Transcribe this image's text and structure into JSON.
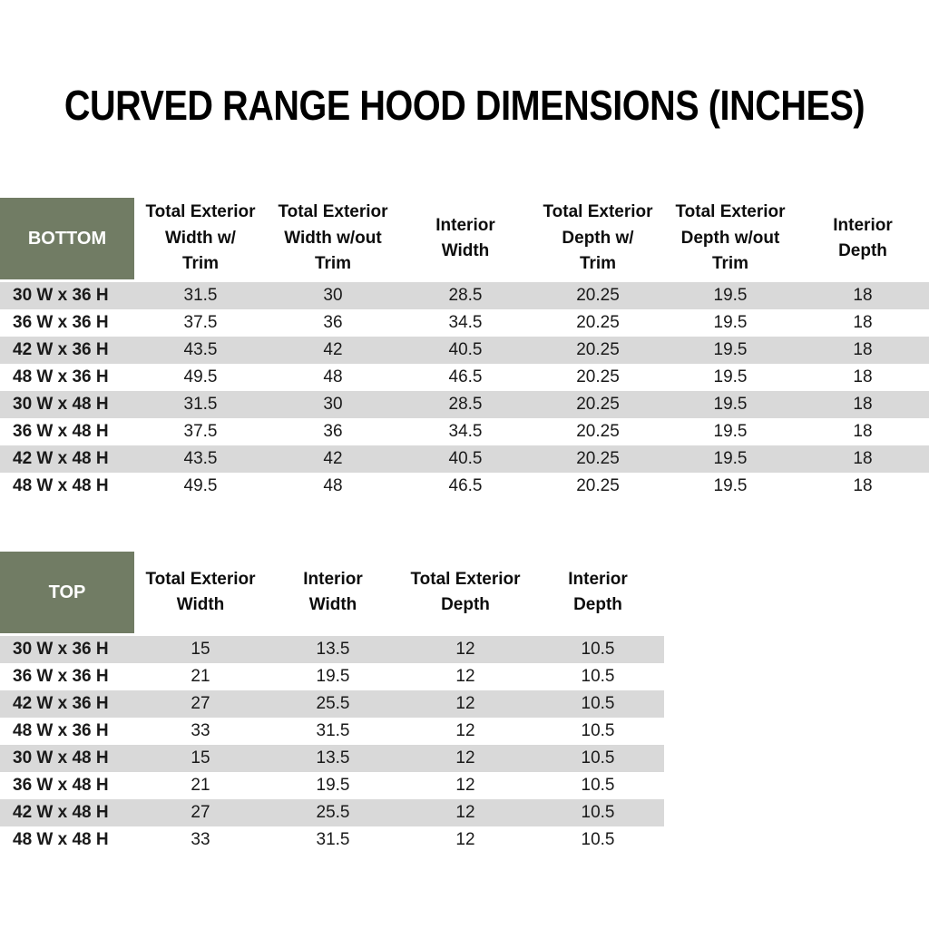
{
  "title": "CURVED RANGE HOOD DIMENSIONS (INCHES)",
  "colors": {
    "header_green": "#717C64",
    "stripe_gray": "#D9D9D9",
    "text": "#1A1A1A"
  },
  "tables": [
    {
      "label": "BOTTOM",
      "columns": [
        "Total Exterior\nWidth w/\nTrim",
        "Total Exterior\nWidth w/out\nTrim",
        "Interior\nWidth",
        "Total Exterior\nDepth w/\nTrim",
        "Total Exterior\nDepth w/out\nTrim",
        "Interior\nDepth"
      ],
      "rows": [
        {
          "size": "30 W x 36 H",
          "values": [
            "31.5",
            "30",
            "28.5",
            "20.25",
            "19.5",
            "18"
          ]
        },
        {
          "size": "36 W x 36 H",
          "values": [
            "37.5",
            "36",
            "34.5",
            "20.25",
            "19.5",
            "18"
          ]
        },
        {
          "size": "42 W x 36 H",
          "values": [
            "43.5",
            "42",
            "40.5",
            "20.25",
            "19.5",
            "18"
          ]
        },
        {
          "size": "48 W x 36 H",
          "values": [
            "49.5",
            "48",
            "46.5",
            "20.25",
            "19.5",
            "18"
          ]
        },
        {
          "size": "30 W x 48 H",
          "values": [
            "31.5",
            "30",
            "28.5",
            "20.25",
            "19.5",
            "18"
          ]
        },
        {
          "size": "36 W x 48 H",
          "values": [
            "37.5",
            "36",
            "34.5",
            "20.25",
            "19.5",
            "18"
          ]
        },
        {
          "size": "42 W x 48 H",
          "values": [
            "43.5",
            "42",
            "40.5",
            "20.25",
            "19.5",
            "18"
          ]
        },
        {
          "size": "48 W x 48 H",
          "values": [
            "49.5",
            "48",
            "46.5",
            "20.25",
            "19.5",
            "18"
          ]
        }
      ]
    },
    {
      "label": "TOP",
      "columns": [
        "Total Exterior\nWidth",
        "Interior\nWidth",
        "Total Exterior\nDepth",
        "Interior\nDepth"
      ],
      "rows": [
        {
          "size": "30 W x 36 H",
          "values": [
            "15",
            "13.5",
            "12",
            "10.5"
          ]
        },
        {
          "size": "36 W x 36 H",
          "values": [
            "21",
            "19.5",
            "12",
            "10.5"
          ]
        },
        {
          "size": "42 W x 36 H",
          "values": [
            "27",
            "25.5",
            "12",
            "10.5"
          ]
        },
        {
          "size": "48 W x 36 H",
          "values": [
            "33",
            "31.5",
            "12",
            "10.5"
          ]
        },
        {
          "size": "30 W x 48 H",
          "values": [
            "15",
            "13.5",
            "12",
            "10.5"
          ]
        },
        {
          "size": "36 W x 48 H",
          "values": [
            "21",
            "19.5",
            "12",
            "10.5"
          ]
        },
        {
          "size": "42 W x 48 H",
          "values": [
            "27",
            "25.5",
            "12",
            "10.5"
          ]
        },
        {
          "size": "48 W x 48 H",
          "values": [
            "33",
            "31.5",
            "12",
            "10.5"
          ]
        }
      ]
    }
  ]
}
